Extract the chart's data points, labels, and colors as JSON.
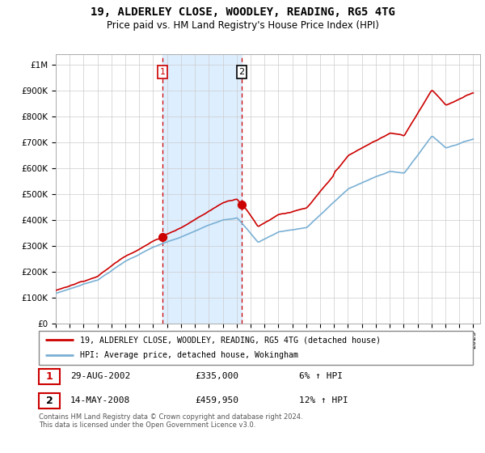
{
  "title": "19, ALDERLEY CLOSE, WOODLEY, READING, RG5 4TG",
  "subtitle": "Price paid vs. HM Land Registry's House Price Index (HPI)",
  "ylabel_ticks": [
    "£0",
    "£100K",
    "£200K",
    "£300K",
    "£400K",
    "£500K",
    "£600K",
    "£700K",
    "£800K",
    "£900K",
    "£1M"
  ],
  "ytick_values": [
    0,
    100000,
    200000,
    300000,
    400000,
    500000,
    600000,
    700000,
    800000,
    900000,
    1000000
  ],
  "ylim": [
    0,
    1040000
  ],
  "xlim_start": 1995.0,
  "xlim_end": 2025.5,
  "xtick_years": [
    1995,
    1996,
    1997,
    1998,
    1999,
    2000,
    2001,
    2002,
    2003,
    2004,
    2005,
    2006,
    2007,
    2008,
    2009,
    2010,
    2011,
    2012,
    2013,
    2014,
    2015,
    2016,
    2017,
    2018,
    2019,
    2020,
    2021,
    2022,
    2023,
    2024,
    2025
  ],
  "purchase1_x": 2002.66,
  "purchase1_y": 335000,
  "purchase2_x": 2008.37,
  "purchase2_y": 459950,
  "shading_color": "#ddeeff",
  "vline_color": "#cc0000",
  "red_line_color": "#cc0000",
  "blue_line_color": "#7ab0d4",
  "legend_label1": "19, ALDERLEY CLOSE, WOODLEY, READING, RG5 4TG (detached house)",
  "legend_label2": "HPI: Average price, detached house, Wokingham",
  "purchase1_date": "29-AUG-2002",
  "purchase1_price": "£335,000",
  "purchase1_hpi": "6% ↑ HPI",
  "purchase2_date": "14-MAY-2008",
  "purchase2_price": "£459,950",
  "purchase2_hpi": "12% ↑ HPI",
  "footnote": "Contains HM Land Registry data © Crown copyright and database right 2024.\nThis data is licensed under the Open Government Licence v3.0.",
  "background_color": "#ffffff",
  "plot_bg_color": "#ffffff",
  "grid_color": "#cccccc"
}
